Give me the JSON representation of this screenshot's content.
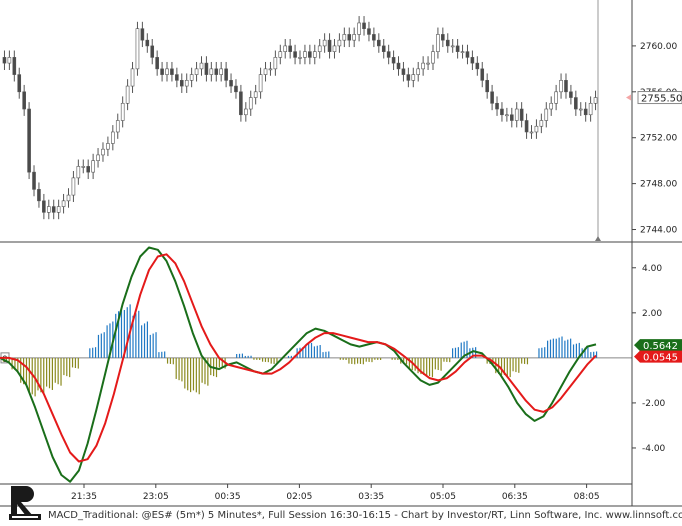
{
  "footer": {
    "caption": "MACD_Traditional: @ES# (5m*) 5 Minutes*, Full Session 16:30-16:15 - Chart by Investor/RT, Linn Software, Inc. www.linnsoft.com"
  },
  "chart_data": [
    {
      "type": "candlestick",
      "title": "",
      "ylim": [
        2743,
        2764
      ],
      "yticks": [
        "2744.00",
        "2748.00",
        "2752.00",
        "2756.00",
        "2760.00"
      ],
      "last_price_label": "2755.50",
      "last_price": 2755.5,
      "up_color": "#ffffff",
      "down_color": "#4a4a4a",
      "wick_color": "#555555",
      "close": [
        2758.5,
        2759.0,
        2757.5,
        2756.0,
        2754.5,
        2749.0,
        2747.5,
        2746.5,
        2745.5,
        2746.0,
        2745.5,
        2746.0,
        2746.5,
        2747.0,
        2748.5,
        2749.5,
        2749.5,
        2749.0,
        2750.0,
        2750.5,
        2751.0,
        2751.5,
        2752.5,
        2753.5,
        2755.0,
        2756.5,
        2758.0,
        2761.5,
        2760.5,
        2760.0,
        2759.0,
        2758.0,
        2757.5,
        2758.0,
        2757.5,
        2757.0,
        2756.5,
        2757.0,
        2757.5,
        2758.0,
        2758.5,
        2757.5,
        2758.0,
        2757.5,
        2758.0,
        2757.0,
        2756.5,
        2756.0,
        2754.0,
        2754.5,
        2755.5,
        2756.0,
        2757.5,
        2758.0,
        2758.0,
        2759.0,
        2759.5,
        2760.0,
        2759.5,
        2759.0,
        2759.0,
        2759.5,
        2759.0,
        2759.5,
        2760.0,
        2760.5,
        2759.5,
        2760.0,
        2760.5,
        2761.0,
        2760.5,
        2761.0,
        2762.0,
        2761.5,
        2761.0,
        2760.5,
        2760.0,
        2759.5,
        2759.0,
        2758.5,
        2758.0,
        2757.5,
        2757.0,
        2757.5,
        2758.0,
        2758.5,
        2758.5,
        2759.5,
        2761.0,
        2760.5,
        2760.0,
        2760.0,
        2759.5,
        2759.5,
        2759.0,
        2758.5,
        2758.0,
        2757.0,
        2756.0,
        2755.0,
        2754.5,
        2754.0,
        2754.0,
        2753.5,
        2754.5,
        2753.5,
        2752.5,
        2752.5,
        2753.0,
        2753.5,
        2754.5,
        2755.0,
        2756.0,
        2757.0,
        2756.0,
        2755.5,
        2754.5,
        2754.5,
        2754.0,
        2755.0,
        2755.5
      ],
      "open": [
        2759.0,
        2758.5,
        2759.0,
        2757.5,
        2756.0,
        2754.5,
        2749.0,
        2747.5,
        2746.5,
        2745.5,
        2746.0,
        2745.5,
        2746.0,
        2746.5,
        2747.0,
        2748.5,
        2749.5,
        2749.5,
        2749.0,
        2750.0,
        2750.5,
        2751.0,
        2751.5,
        2752.5,
        2753.5,
        2755.0,
        2756.5,
        2758.0,
        2761.5,
        2760.5,
        2760.0,
        2759.0,
        2758.0,
        2757.5,
        2758.0,
        2757.5,
        2757.0,
        2756.5,
        2757.0,
        2757.5,
        2758.0,
        2758.5,
        2757.5,
        2758.0,
        2757.5,
        2758.0,
        2757.0,
        2756.5,
        2756.0,
        2754.0,
        2754.5,
        2755.5,
        2756.0,
        2757.5,
        2758.0,
        2758.0,
        2759.0,
        2759.5,
        2760.0,
        2759.5,
        2759.0,
        2759.0,
        2759.5,
        2759.0,
        2759.5,
        2760.0,
        2760.5,
        2759.5,
        2760.0,
        2760.5,
        2761.0,
        2760.5,
        2761.0,
        2762.0,
        2761.5,
        2761.0,
        2760.5,
        2760.0,
        2759.5,
        2759.0,
        2758.5,
        2758.0,
        2757.5,
        2757.0,
        2757.5,
        2758.0,
        2758.5,
        2758.5,
        2759.5,
        2761.0,
        2760.5,
        2760.0,
        2760.0,
        2759.5,
        2759.5,
        2759.0,
        2758.5,
        2758.0,
        2757.0,
        2756.0,
        2755.0,
        2754.5,
        2754.0,
        2754.0,
        2753.5,
        2754.5,
        2753.5,
        2752.5,
        2752.5,
        2753.0,
        2753.5,
        2754.5,
        2755.0,
        2756.0,
        2757.0,
        2756.0,
        2755.5,
        2754.5,
        2754.5,
        2754.0,
        2755.0
      ]
    },
    {
      "type": "line",
      "title": "",
      "ylim": [
        -5.6,
        5.1
      ],
      "yticks": [
        "4.00",
        "2.00",
        "-2.00",
        "-4.00"
      ],
      "x_tick_labels": [
        "21:35",
        "23:05",
        "00:35",
        "02:05",
        "03:35",
        "05:05",
        "06:35",
        "08:05"
      ],
      "zero_label": "0",
      "macd_label": "0.5642",
      "signal_label": "0.0545",
      "series": [
        {
          "color": "#1a6e1a",
          "values": [
            0.0,
            -0.2,
            -0.6,
            -1.2,
            -2.2,
            -3.3,
            -4.4,
            -5.2,
            -5.5,
            -5.0,
            -3.8,
            -2.3,
            -0.7,
            0.9,
            2.4,
            3.6,
            4.5,
            4.9,
            4.8,
            4.3,
            3.4,
            2.3,
            1.1,
            0.1,
            -0.4,
            -0.5,
            -0.3,
            -0.2,
            -0.4,
            -0.6,
            -0.7,
            -0.5,
            -0.1,
            0.3,
            0.7,
            1.1,
            1.3,
            1.2,
            1.0,
            0.8,
            0.6,
            0.5,
            0.6,
            0.7,
            0.6,
            0.3,
            -0.2,
            -0.6,
            -1.0,
            -1.2,
            -1.1,
            -0.7,
            -0.3,
            0.1,
            0.3,
            0.2,
            -0.2,
            -0.7,
            -1.3,
            -2.0,
            -2.5,
            -2.8,
            -2.6,
            -2.0,
            -1.3,
            -0.6,
            0.0,
            0.5,
            0.6
          ]
        },
        {
          "color": "#e41a1a",
          "values": [
            0.0,
            0.0,
            -0.1,
            -0.4,
            -0.9,
            -1.6,
            -2.5,
            -3.4,
            -4.2,
            -4.6,
            -4.5,
            -3.9,
            -2.9,
            -1.6,
            -0.1,
            1.4,
            2.8,
            3.9,
            4.5,
            4.6,
            4.2,
            3.4,
            2.4,
            1.4,
            0.6,
            0.0,
            -0.3,
            -0.4,
            -0.5,
            -0.6,
            -0.7,
            -0.7,
            -0.5,
            -0.2,
            0.2,
            0.6,
            0.9,
            1.1,
            1.1,
            1.0,
            0.9,
            0.8,
            0.7,
            0.7,
            0.6,
            0.4,
            0.1,
            -0.2,
            -0.6,
            -0.9,
            -1.0,
            -0.9,
            -0.6,
            -0.2,
            0.1,
            0.1,
            -0.1,
            -0.4,
            -0.9,
            -1.4,
            -1.9,
            -2.3,
            -2.4,
            -2.2,
            -1.8,
            -1.3,
            -0.8,
            -0.3,
            0.1
          ]
        }
      ],
      "histogram": {
        "positive_color": "#1f78c4",
        "negative_color": "#8a8a1e",
        "values": [
          -0.2,
          -0.6,
          -1.3,
          -1.8,
          -1.7,
          -1.5,
          -1.3,
          -0.9,
          -0.5,
          0.0,
          0.5,
          1.2,
          1.7,
          2.3,
          2.5,
          2.2,
          1.7,
          1.2,
          0.3,
          -0.3,
          -1.1,
          -1.6,
          -1.7,
          -1.3,
          -0.9,
          -0.5,
          0.0,
          0.2,
          0.1,
          -0.1,
          -0.2,
          -0.3,
          0.0,
          0.1,
          0.5,
          0.7,
          0.6,
          0.3,
          0.0,
          -0.1,
          -0.3,
          -0.3,
          -0.2,
          -0.1,
          0.0,
          -0.1,
          -0.3,
          -0.6,
          -0.8,
          -0.9,
          -0.6,
          -0.2,
          0.5,
          0.8,
          0.5,
          0.0,
          -0.3,
          -0.8,
          -0.9,
          -0.7,
          -0.3,
          0.0,
          0.5,
          0.9,
          1.0,
          0.9,
          0.7,
          0.5,
          0.3
        ]
      }
    }
  ]
}
